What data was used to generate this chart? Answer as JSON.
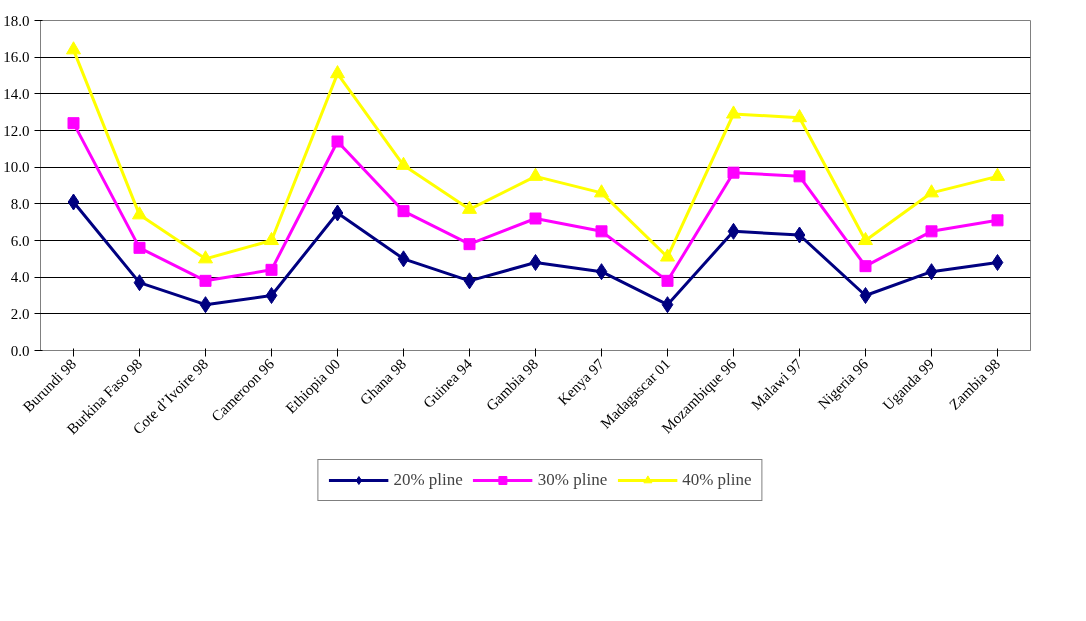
{
  "chart_data": {
    "type": "line",
    "categories": [
      "Burundi 98",
      "Burkina Faso 98",
      "Cote d’Ivoire 98",
      "Cameroon 96",
      "Ethiopia 00",
      "Ghana 98",
      "Guinea 94",
      "Gambia 98",
      "Kenya 97",
      "Madagascar 01",
      "Mozambique 96",
      "Malawi 97",
      "Nigeria 96",
      "Uganda 99",
      "Zambia 98"
    ],
    "series": [
      {
        "name": "20% pline",
        "color": "#000080",
        "marker": "diamond",
        "values": [
          8.1,
          3.7,
          2.5,
          3.0,
          7.5,
          5.0,
          3.8,
          4.8,
          4.3,
          2.5,
          6.5,
          6.3,
          3.0,
          4.3,
          4.8
        ]
      },
      {
        "name": "30% pline",
        "color": "#ff00ff",
        "marker": "square",
        "values": [
          12.4,
          5.6,
          3.8,
          4.4,
          11.4,
          7.6,
          5.8,
          7.2,
          6.5,
          3.8,
          9.7,
          9.5,
          4.6,
          6.5,
          7.1
        ]
      },
      {
        "name": "40% pline",
        "color": "#ffff00",
        "marker": "triangle",
        "values": [
          16.4,
          7.4,
          5.0,
          6.0,
          15.1,
          10.1,
          7.7,
          9.5,
          8.6,
          5.1,
          12.9,
          12.7,
          6.0,
          8.6,
          9.5
        ]
      }
    ],
    "ylim": [
      0,
      18
    ],
    "yticks": [
      {
        "value": 0,
        "label": "0.0"
      },
      {
        "value": 2,
        "label": "2.0"
      },
      {
        "value": 4,
        "label": "4.0"
      },
      {
        "value": 6,
        "label": "6.0"
      },
      {
        "value": 8,
        "label": "8.0"
      },
      {
        "value": 10,
        "label": "10.0"
      },
      {
        "value": 12,
        "label": "12.0"
      },
      {
        "value": 14,
        "label": "14.0"
      },
      {
        "value": 16,
        "label": "16.0"
      },
      {
        "value": 18,
        "label": "18.0"
      }
    ],
    "grid": "y",
    "legend": "bottom",
    "line_style": "solid"
  }
}
